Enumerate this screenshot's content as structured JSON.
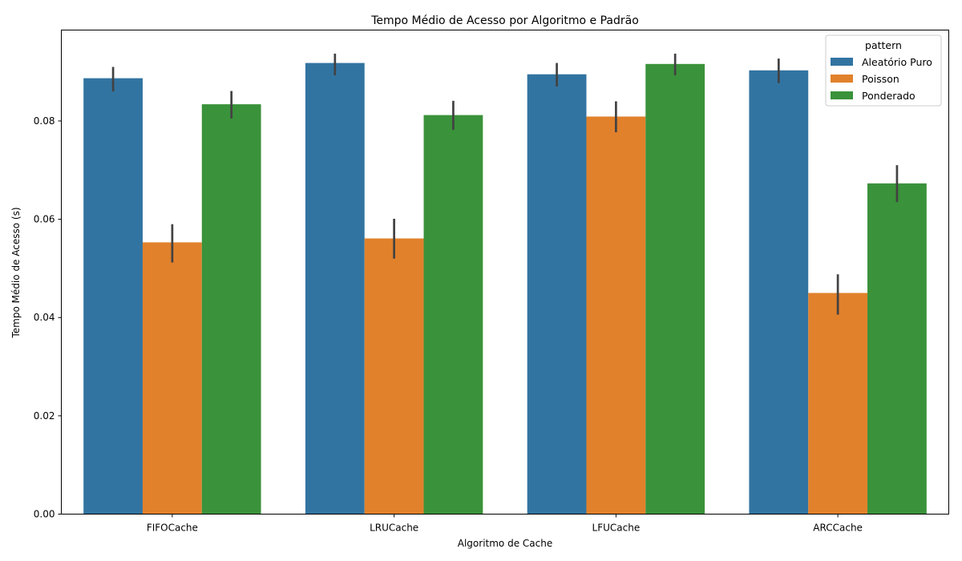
{
  "chart_data": {
    "type": "bar",
    "title": "Tempo Médio de Acesso por Algoritmo e Padrão",
    "xlabel": "Algoritmo de Cache",
    "ylabel": "Tempo Médio de Acesso (s)",
    "categories": [
      "FIFOCache",
      "LRUCache",
      "LFUCache",
      "ARCCache"
    ],
    "ylim": [
      0,
      0.0985
    ],
    "yticks": [
      0.0,
      0.02,
      0.04,
      0.06,
      0.08
    ],
    "ytick_labels": [
      "0.00",
      "0.02",
      "0.04",
      "0.06",
      "0.08"
    ],
    "grid": false,
    "legend": {
      "title": "pattern",
      "placement": "top-right"
    },
    "series": [
      {
        "name": "Aleatório Puro",
        "color": "#3274a1",
        "values": [
          0.0887,
          0.0918,
          0.0895,
          0.0903
        ],
        "err_low": [
          0.086,
          0.0893,
          0.087,
          0.0877
        ],
        "err_high": [
          0.091,
          0.0937,
          0.0918,
          0.0927
        ]
      },
      {
        "name": "Poisson",
        "color": "#e1812c",
        "values": [
          0.0553,
          0.0561,
          0.0809,
          0.045
        ],
        "err_low": [
          0.0512,
          0.052,
          0.0777,
          0.0406
        ],
        "err_high": [
          0.059,
          0.0601,
          0.084,
          0.0488
        ]
      },
      {
        "name": "Ponderado",
        "color": "#3a923a",
        "values": [
          0.0834,
          0.0812,
          0.0916,
          0.0673
        ],
        "err_low": [
          0.0805,
          0.0782,
          0.0893,
          0.0635
        ],
        "err_high": [
          0.0861,
          0.0841,
          0.0937,
          0.071
        ]
      }
    ],
    "errorbar_color": "#424242"
  }
}
